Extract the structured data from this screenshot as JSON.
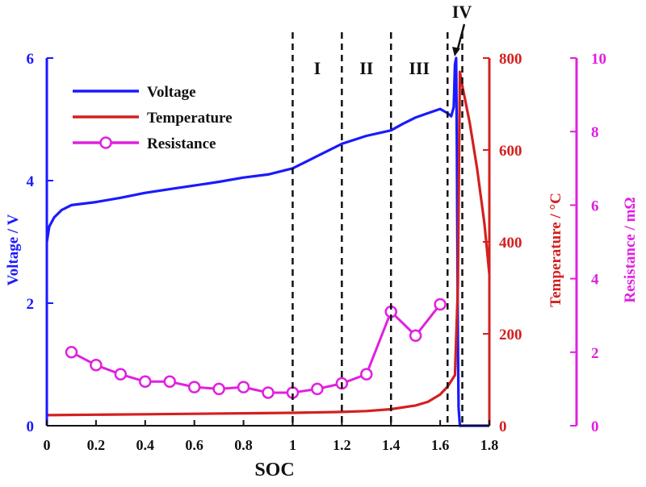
{
  "chart_data": {
    "type": "line",
    "xlabel": "SOC",
    "xlim": [
      0,
      1.8
    ],
    "x_ticks": [
      "0",
      "0.2",
      "0.4",
      "0.6",
      "0.8",
      "1",
      "1.2",
      "1.4",
      "1.6",
      "1.8"
    ],
    "axes": {
      "left": {
        "label": "Voltage / V",
        "ylim": [
          0,
          6
        ],
        "ticks": [
          "0",
          "2",
          "4",
          "6"
        ],
        "color": "#1a1aff"
      },
      "right1": {
        "label": "Temperature / °C",
        "ylim": [
          0,
          800
        ],
        "ticks": [
          "0",
          "200",
          "400",
          "600",
          "800"
        ],
        "color": "#d42020"
      },
      "right2": {
        "label": "Resistance / mΩ",
        "ylim": [
          0,
          10
        ],
        "ticks": [
          "0",
          "2",
          "4",
          "6",
          "8",
          "10"
        ],
        "color": "#e020e0"
      }
    },
    "series": [
      {
        "name": "Voltage",
        "axis": "left",
        "color": "#1a1aff",
        "points": [
          [
            0,
            3.0
          ],
          [
            0.01,
            3.25
          ],
          [
            0.03,
            3.4
          ],
          [
            0.06,
            3.52
          ],
          [
            0.1,
            3.6
          ],
          [
            0.2,
            3.65
          ],
          [
            0.3,
            3.72
          ],
          [
            0.4,
            3.8
          ],
          [
            0.5,
            3.86
          ],
          [
            0.6,
            3.92
          ],
          [
            0.7,
            3.98
          ],
          [
            0.8,
            4.05
          ],
          [
            0.9,
            4.1
          ],
          [
            1.0,
            4.2
          ],
          [
            1.1,
            4.4
          ],
          [
            1.2,
            4.6
          ],
          [
            1.3,
            4.73
          ],
          [
            1.4,
            4.82
          ],
          [
            1.45,
            4.93
          ],
          [
            1.5,
            5.03
          ],
          [
            1.55,
            5.1
          ],
          [
            1.6,
            5.17
          ],
          [
            1.63,
            5.1
          ],
          [
            1.645,
            5.05
          ],
          [
            1.655,
            5.2
          ],
          [
            1.66,
            5.9
          ],
          [
            1.665,
            6.0
          ],
          [
            1.668,
            4.5
          ],
          [
            1.672,
            1.5
          ],
          [
            1.675,
            0.3
          ],
          [
            1.68,
            0
          ],
          [
            1.8,
            0
          ]
        ]
      },
      {
        "name": "Temperature",
        "axis": "right1",
        "color": "#d42020",
        "points": [
          [
            0,
            23
          ],
          [
            0.2,
            24
          ],
          [
            0.4,
            25
          ],
          [
            0.6,
            26
          ],
          [
            0.8,
            27
          ],
          [
            1.0,
            28
          ],
          [
            1.2,
            30
          ],
          [
            1.3,
            32
          ],
          [
            1.4,
            36
          ],
          [
            1.5,
            44
          ],
          [
            1.55,
            52
          ],
          [
            1.6,
            68
          ],
          [
            1.63,
            85
          ],
          [
            1.66,
            110
          ],
          [
            1.672,
            300
          ],
          [
            1.68,
            770
          ],
          [
            1.69,
            740
          ],
          [
            1.72,
            660
          ],
          [
            1.75,
            560
          ],
          [
            1.78,
            440
          ],
          [
            1.8,
            330
          ]
        ]
      },
      {
        "name": "Resistance",
        "axis": "right2",
        "color": "#e020e0",
        "markers": true,
        "points": [
          [
            0.1,
            2.0
          ],
          [
            0.2,
            1.65
          ],
          [
            0.3,
            1.4
          ],
          [
            0.4,
            1.2
          ],
          [
            0.5,
            1.2
          ],
          [
            0.6,
            1.05
          ],
          [
            0.7,
            1.0
          ],
          [
            0.8,
            1.05
          ],
          [
            0.9,
            0.9
          ],
          [
            1.0,
            0.9
          ],
          [
            1.1,
            1.0
          ],
          [
            1.2,
            1.15
          ],
          [
            1.3,
            1.4
          ],
          [
            1.4,
            3.1
          ],
          [
            1.5,
            2.45
          ],
          [
            1.6,
            3.3
          ]
        ]
      }
    ],
    "regions": {
      "boundaries": [
        1.0,
        1.2,
        1.4,
        1.63,
        1.69
      ],
      "labels": [
        {
          "text": "I",
          "x": 1.1
        },
        {
          "text": "II",
          "x": 1.3
        },
        {
          "text": "III",
          "x": 1.515
        },
        {
          "text": "IV",
          "x": 1.66
        }
      ]
    },
    "legend": {
      "position": "top-left",
      "entries": [
        "Voltage",
        "Temperature",
        "Resistance"
      ]
    }
  }
}
